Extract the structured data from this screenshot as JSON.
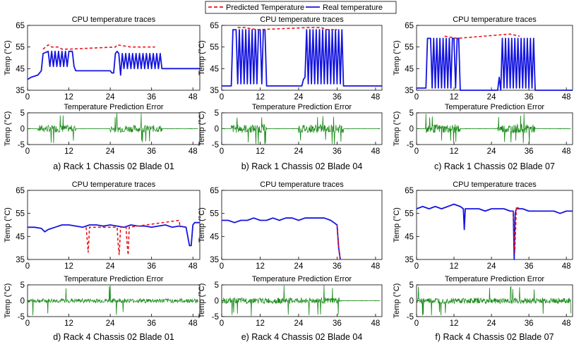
{
  "legend": {
    "items": [
      {
        "label": "Predicted Temperature",
        "color": "#e8141c",
        "style": "dashed"
      },
      {
        "label": "Real temperature",
        "color": "#1414e0",
        "style": "solid"
      }
    ]
  },
  "colors": {
    "real": "#1414e0",
    "predicted": "#e8141c",
    "error": "#1a8a1a"
  },
  "chart_data": [
    {
      "type": "line",
      "caption": "a) Rack 1 Chassis 02 Blade 01",
      "temp": {
        "title": "CPU temperature traces",
        "ylabel": "Temp (°C)",
        "ylim": [
          35,
          65
        ],
        "yticks": [
          "35",
          "45",
          "55",
          "65"
        ],
        "xlim": [
          0,
          50
        ],
        "xticks": [
          "0",
          "12",
          "24",
          "36",
          "48"
        ],
        "series": [
          {
            "name": "Real temperature",
            "x": [
              0,
              1,
              3,
              4,
              4.5,
              6,
              6.5,
              7,
              7.5,
              8,
              8.5,
              9,
              9.5,
              10,
              10.5,
              11,
              11.5,
              12,
              13,
              13.5,
              14,
              18,
              22,
              24,
              24.5,
              25,
              25.5,
              26,
              26.5,
              27,
              27.5,
              28,
              28.5,
              29,
              29.5,
              30,
              30.5,
              31,
              31.5,
              32,
              32.5,
              33,
              33.5,
              34,
              34.5,
              35,
              35.5,
              36,
              36.5,
              37,
              37.5,
              38,
              38.5,
              39,
              40,
              44,
              48,
              50
            ],
            "y": [
              40,
              41,
              42,
              44,
              52,
              53,
              46,
              53,
              46,
              53,
              46,
              53,
              46,
              53,
              46,
              53,
              46,
              53,
              53,
              46,
              44,
              44,
              44,
              44,
              43,
              43,
              52,
              53,
              52,
              42,
              52,
              45,
              52,
              45,
              52,
              45,
              52,
              45,
              52,
              45,
              52,
              45,
              52,
              45,
              52,
              45,
              52,
              45,
              52,
              45,
              52,
              45,
              52,
              45,
              45,
              45,
              45,
              45
            ]
          },
          {
            "name": "Predicted Temperature",
            "x": [
              4.5,
              6,
              7,
              9,
              10,
              12,
              25.5,
              26,
              30,
              34,
              37
            ],
            "y": [
              54,
              56,
              55,
              55,
              54,
              54,
              55,
              56,
              55,
              55,
              55
            ]
          }
        ]
      },
      "error": {
        "title": "Temperature Prediction Error",
        "ylabel": "Temp (°C)",
        "ylim": [
          -5,
          5
        ],
        "yticks": [
          "-5",
          "0",
          "5"
        ],
        "xlim": [
          0,
          50
        ],
        "xticks": [
          "0",
          "12",
          "24",
          "36",
          "48"
        ],
        "active": [
          [
            3,
            14
          ],
          [
            24,
            39
          ]
        ],
        "amp": 2.5
      }
    },
    {
      "type": "line",
      "caption": "b) Rack 1 Chassis 02 Blade 04",
      "temp": {
        "title": "CPU temperature traces",
        "ylabel": "Temp (°C)",
        "ylim": [
          35,
          65
        ],
        "yticks": [
          "35",
          "45",
          "55",
          "65"
        ],
        "xlim": [
          0,
          50
        ],
        "xticks": [
          "0",
          "12",
          "24",
          "36",
          "48"
        ],
        "series": [
          {
            "name": "Real temperature",
            "x": [
              0,
              3,
              3.5,
              4,
              4.5,
              5,
              5.5,
              6,
              6.5,
              7,
              7.5,
              8,
              8.5,
              9,
              9.5,
              10,
              10.5,
              11,
              11.5,
              12,
              12.5,
              13,
              13.5,
              14,
              18,
              22,
              25,
              25.5,
              26,
              26.5,
              27,
              27.5,
              28,
              28.5,
              29,
              29.5,
              30,
              30.5,
              31,
              31.5,
              32,
              32.5,
              33,
              33.5,
              34,
              34.5,
              35,
              35.5,
              36,
              36.5,
              37,
              37.5,
              38,
              50
            ],
            "y": [
              37,
              37,
              63,
              63,
              63,
              38,
              63,
              38,
              63,
              38,
              63,
              38,
              63,
              38,
              63,
              38,
              63,
              38,
              63,
              63,
              38,
              63,
              63,
              37,
              37,
              37,
              37,
              40,
              41,
              63,
              38,
              63,
              38,
              63,
              38,
              63,
              38,
              63,
              38,
              63,
              38,
              63,
              38,
              63,
              38,
              63,
              38,
              63,
              38,
              63,
              38,
              63,
              37,
              37
            ]
          },
          {
            "name": "Predicted Temperature",
            "x": [
              5,
              7,
              11,
              27,
              31,
              33,
              36
            ],
            "y": [
              64,
              64,
              63,
              64,
              64,
              63,
              63
            ]
          }
        ]
      },
      "error": {
        "title": "Temperature Prediction Error",
        "ylabel": "Temp (°C)",
        "ylim": [
          -5,
          5
        ],
        "yticks": [
          "-5",
          "0",
          "5"
        ],
        "xlim": [
          0,
          50
        ],
        "xticks": [
          "0",
          "12",
          "24",
          "36",
          "48"
        ],
        "active": [
          [
            3,
            14
          ],
          [
            24,
            38
          ]
        ],
        "amp": 3
      }
    },
    {
      "type": "line",
      "caption": "c) Rack 1 Chassis 02 Blade 07",
      "temp": {
        "title": "CPU temperature traces",
        "ylabel": "Temp (°C)",
        "ylim": [
          35,
          65
        ],
        "yticks": [
          "35",
          "45",
          "55",
          "65"
        ],
        "xlim": [
          0,
          50
        ],
        "xticks": [
          "0",
          "12",
          "24",
          "36",
          "48"
        ],
        "series": [
          {
            "name": "Real temperature",
            "x": [
              0,
              3,
              3.5,
              4,
              4.5,
              5,
              5.5,
              6,
              6.5,
              7,
              7.5,
              8,
              8.5,
              9,
              9.5,
              10,
              10.5,
              11,
              11.5,
              12,
              12.5,
              13,
              13.5,
              14,
              18,
              24,
              26,
              26.5,
              27,
              27.5,
              28,
              28.5,
              29,
              29.5,
              30,
              30.5,
              31,
              31.5,
              32,
              32.5,
              33,
              33.5,
              34,
              34.5,
              35,
              35.5,
              36,
              36.5,
              37,
              37.5,
              38,
              50
            ],
            "y": [
              36,
              36,
              59,
              59,
              59,
              36,
              59,
              36,
              59,
              36,
              59,
              36,
              59,
              36,
              59,
              36,
              59,
              36,
              59,
              59,
              36,
              59,
              59,
              35,
              35,
              35,
              35,
              41,
              35,
              59,
              36,
              59,
              36,
              59,
              36,
              59,
              36,
              59,
              36,
              59,
              36,
              59,
              36,
              59,
              36,
              59,
              36,
              59,
              36,
              59,
              35,
              35
            ]
          },
          {
            "name": "Predicted Temperature",
            "x": [
              9,
              13,
              30,
              33
            ],
            "y": [
              60,
              59,
              61,
              60
            ]
          }
        ]
      },
      "error": {
        "title": "Temperature Prediction Error",
        "ylabel": "Temp (°C)",
        "ylim": [
          -5,
          5
        ],
        "yticks": [
          "-5",
          "0",
          "5"
        ],
        "xlim": [
          0,
          50
        ],
        "xticks": [
          "0",
          "12",
          "24",
          "36",
          "48"
        ],
        "active": [
          [
            3,
            14
          ],
          [
            26,
            38
          ]
        ],
        "amp": 3
      }
    },
    {
      "type": "line",
      "caption": "d) Rack 4 Chassis 02 Blade 01",
      "temp": {
        "title": "CPU temperature traces",
        "ylabel": "Temp (°C)",
        "ylim": [
          35,
          65
        ],
        "yticks": [
          "35",
          "45",
          "55",
          "65"
        ],
        "xlim": [
          0,
          50
        ],
        "xticks": [
          "0",
          "12",
          "24",
          "36",
          "48"
        ],
        "series": [
          {
            "name": "Real temperature",
            "x": [
              0,
              2,
              4,
              5,
              6,
              8,
              10,
              12,
              14,
              16,
              18,
              20,
              22,
              24,
              26,
              28,
              30,
              32,
              34,
              36,
              38,
              40,
              42,
              44,
              46,
              47,
              47.5,
              48,
              48.5,
              49,
              50
            ],
            "y": [
              49,
              49,
              48.5,
              47,
              48,
              49,
              50,
              50,
              49.5,
              49,
              50,
              50,
              49.5,
              50,
              49.5,
              49,
              50,
              49.5,
              49.5,
              49,
              49.5,
              50,
              49,
              49.5,
              49,
              41,
              41,
              50,
              51,
              51,
              51
            ]
          },
          {
            "name": "Predicted Temperature",
            "x": [
              17,
              17.3,
              17.6,
              18,
              26,
              26.3,
              26.6,
              27,
              28.6,
              28.9,
              29.2,
              29.5,
              44,
              44.3
            ],
            "y": [
              49,
              44,
              38,
              49,
              49,
              42,
              37,
              49,
              49,
              42,
              37,
              49,
              52,
              49
            ]
          }
        ]
      },
      "error": {
        "title": "Temperature Prediction Error",
        "ylabel": "Temp (°C)",
        "ylim": [
          -5,
          5
        ],
        "yticks": [
          "-5",
          "0",
          "5"
        ],
        "xlim": [
          0,
          50
        ],
        "xticks": [
          "0",
          "12",
          "24",
          "36",
          "48"
        ],
        "active": [
          [
            0,
            50
          ]
        ],
        "amp": 1.5
      }
    },
    {
      "type": "line",
      "caption": "e) Rack 4 Chassis 02 Blade 04",
      "temp": {
        "title": "CPU temperature traces",
        "ylabel": "Temp (°C)",
        "ylim": [
          35,
          65
        ],
        "yticks": [
          "35",
          "45",
          "55",
          "65"
        ],
        "xlim": [
          0,
          50
        ],
        "xticks": [
          "0",
          "12",
          "24",
          "36",
          "48"
        ],
        "series": [
          {
            "name": "Real temperature",
            "x": [
              0,
              2,
              4,
              6,
              8,
              10,
              12,
              14,
              16,
              18,
              20,
              22,
              24,
              26,
              28,
              30,
              32,
              34,
              35,
              36,
              36.5,
              37
            ],
            "y": [
              52,
              52,
              51,
              52,
              52,
              53,
              52,
              52,
              53,
              52,
              53,
              53,
              52,
              53,
              53,
              53,
              53,
              52,
              51,
              50,
              40,
              35
            ]
          },
          {
            "name": "Predicted Temperature",
            "x": [
              36,
              36.5,
              37
            ],
            "y": [
              50,
              41,
              35
            ]
          }
        ]
      },
      "error": {
        "title": "Temperature Prediction Error",
        "ylabel": "Temp (°C)",
        "ylim": [
          -5,
          5
        ],
        "yticks": [
          "-5",
          "0",
          "5"
        ],
        "xlim": [
          0,
          50
        ],
        "xticks": [
          "0",
          "12",
          "24",
          "36",
          "48"
        ],
        "active": [
          [
            0,
            37
          ]
        ],
        "amp": 2
      }
    },
    {
      "type": "line",
      "caption": "f) Rack 4 Chassis 02 Blade 07",
      "temp": {
        "title": "CPU temperature traces",
        "ylabel": "Temp (°C)",
        "ylim": [
          35,
          65
        ],
        "yticks": [
          "35",
          "45",
          "55",
          "65"
        ],
        "xlim": [
          0,
          50
        ],
        "xticks": [
          "0",
          "12",
          "24",
          "36",
          "48"
        ],
        "series": [
          {
            "name": "Real temperature",
            "x": [
              0,
              2,
              4,
              6,
              8,
              10,
              12,
              14,
              15,
              15.3,
              15.6,
              16,
              18,
              20,
              22,
              24,
              26,
              28,
              30,
              31,
              31.3,
              31.6,
              32,
              34,
              36,
              38,
              40,
              42,
              44,
              46,
              48,
              50
            ],
            "y": [
              57,
              58,
              57,
              58,
              57,
              58,
              59,
              58,
              57,
              48,
              57,
              57,
              57,
              57,
              56,
              57,
              57,
              57,
              56,
              56,
              35,
              55,
              57,
              57,
              56,
              56,
              56,
              56,
              56,
              55,
              56,
              56
            ]
          },
          {
            "name": "Predicted Temperature",
            "x": [
              31,
              31.5,
              32,
              33
            ],
            "y": [
              56,
              38,
              58,
              57
            ]
          }
        ]
      },
      "error": {
        "title": "Temperature Prediction Error",
        "ylabel": "Temp (°C)",
        "ylim": [
          -5,
          5
        ],
        "yticks": [
          "-5",
          "0",
          "5"
        ],
        "xlim": [
          0,
          50
        ],
        "xticks": [
          "0",
          "12",
          "24",
          "36",
          "48"
        ],
        "active": [
          [
            0,
            50
          ]
        ],
        "amp": 2
      }
    }
  ]
}
